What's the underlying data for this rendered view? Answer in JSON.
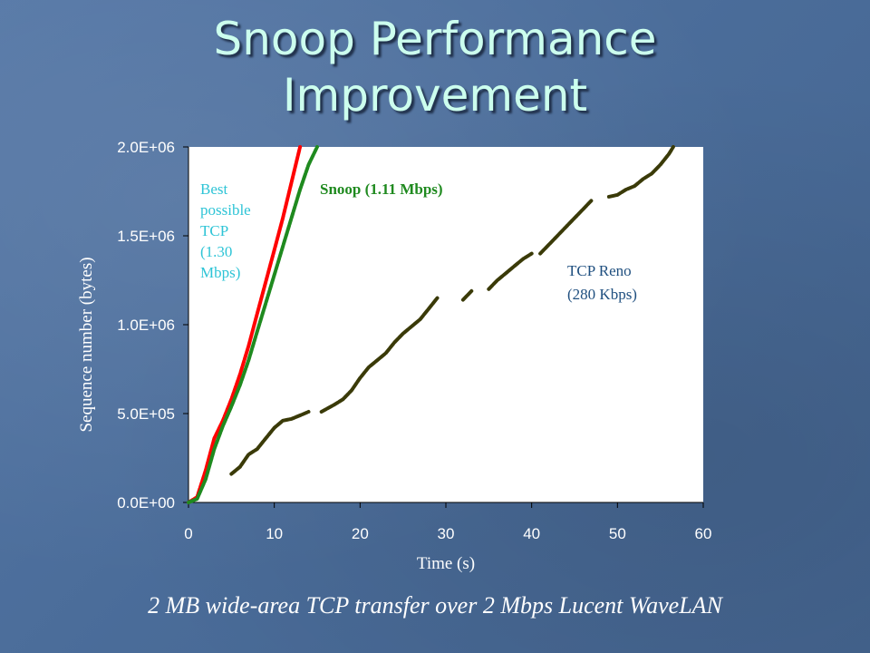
{
  "slide": {
    "title_line1": "Snoop Performance",
    "title_line2": "Improvement",
    "caption": "2 MB wide-area TCP transfer over 2 Mbps Lucent WaveLAN"
  },
  "chart_data": {
    "type": "line",
    "xlabel": "Time (s)",
    "ylabel": "Sequence number (bytes)",
    "xlim": [
      0,
      60
    ],
    "ylim": [
      0,
      2000000
    ],
    "x_ticks": [
      "0",
      "10",
      "20",
      "30",
      "40",
      "50",
      "60"
    ],
    "y_ticks": [
      "0.0E+00",
      "5.0E+05",
      "1.0E+06",
      "1.5E+06",
      "2.0E+06"
    ],
    "x_tick_values": [
      0,
      10,
      20,
      30,
      40,
      50,
      60
    ],
    "y_tick_values": [
      0,
      500000,
      1000000,
      1500000,
      2000000
    ],
    "grid": false,
    "series": [
      {
        "name": "Best possible TCP (1.30 Mbps)",
        "label_lines": [
          "Best",
          "possible",
          "TCP",
          "(1.30",
          "Mbps)"
        ],
        "color": "#ff0000",
        "segments": [
          [
            [
              0,
              0
            ],
            [
              1,
              30000
            ],
            [
              2,
              180000
            ],
            [
              3,
              360000
            ],
            [
              4,
              460000
            ],
            [
              5,
              580000
            ],
            [
              6,
              720000
            ],
            [
              7,
              880000
            ],
            [
              8,
              1060000
            ],
            [
              9,
              1240000
            ],
            [
              10,
              1420000
            ],
            [
              11,
              1600000
            ],
            [
              12,
              1800000
            ],
            [
              13,
              2000000
            ]
          ]
        ]
      },
      {
        "name": "Snoop (1.11 Mbps)",
        "label_lines": [
          "Snoop (1.11 Mbps)"
        ],
        "color": "#1f8a1f",
        "segments": [
          [
            [
              0,
              0
            ],
            [
              1,
              20000
            ],
            [
              2,
              130000
            ],
            [
              3,
              300000
            ],
            [
              4,
              430000
            ],
            [
              5,
              540000
            ],
            [
              6,
              660000
            ],
            [
              7,
              800000
            ],
            [
              8,
              960000
            ],
            [
              9,
              1120000
            ],
            [
              10,
              1280000
            ],
            [
              11,
              1440000
            ],
            [
              12,
              1600000
            ],
            [
              13,
              1760000
            ],
            [
              14,
              1900000
            ],
            [
              15,
              2000000
            ]
          ]
        ]
      },
      {
        "name": "TCP Reno (280 Kbps)",
        "label_lines": [
          "TCP Reno",
          "(280 Kbps)"
        ],
        "color": "#3a3a08",
        "segments": [
          [
            [
              5,
              160000
            ],
            [
              6,
              200000
            ],
            [
              7,
              270000
            ],
            [
              8,
              300000
            ],
            [
              9,
              360000
            ],
            [
              10,
              420000
            ],
            [
              11,
              460000
            ],
            [
              12,
              470000
            ],
            [
              13,
              490000
            ],
            [
              14,
              510000
            ]
          ],
          [
            [
              15.5,
              510000
            ],
            [
              17,
              550000
            ],
            [
              18,
              580000
            ],
            [
              19,
              630000
            ],
            [
              20,
              700000
            ],
            [
              21,
              760000
            ],
            [
              22,
              800000
            ],
            [
              23,
              840000
            ],
            [
              24,
              900000
            ],
            [
              25,
              950000
            ],
            [
              26,
              990000
            ],
            [
              27,
              1030000
            ],
            [
              28,
              1090000
            ],
            [
              29,
              1150000
            ]
          ],
          [
            [
              32,
              1140000
            ],
            [
              33,
              1190000
            ]
          ],
          [
            [
              35,
              1200000
            ],
            [
              36,
              1250000
            ],
            [
              37,
              1290000
            ],
            [
              38,
              1330000
            ],
            [
              39,
              1370000
            ],
            [
              40,
              1400000
            ]
          ],
          [
            [
              41,
              1400000
            ],
            [
              42,
              1450000
            ],
            [
              43,
              1500000
            ],
            [
              44,
              1550000
            ],
            [
              45,
              1600000
            ],
            [
              46,
              1650000
            ],
            [
              47,
              1700000
            ]
          ],
          [
            [
              49,
              1720000
            ],
            [
              50,
              1730000
            ],
            [
              51,
              1760000
            ],
            [
              52,
              1780000
            ],
            [
              53,
              1820000
            ],
            [
              54,
              1850000
            ],
            [
              55,
              1900000
            ],
            [
              56,
              1960000
            ],
            [
              56.5,
              2000000
            ]
          ]
        ]
      }
    ]
  }
}
